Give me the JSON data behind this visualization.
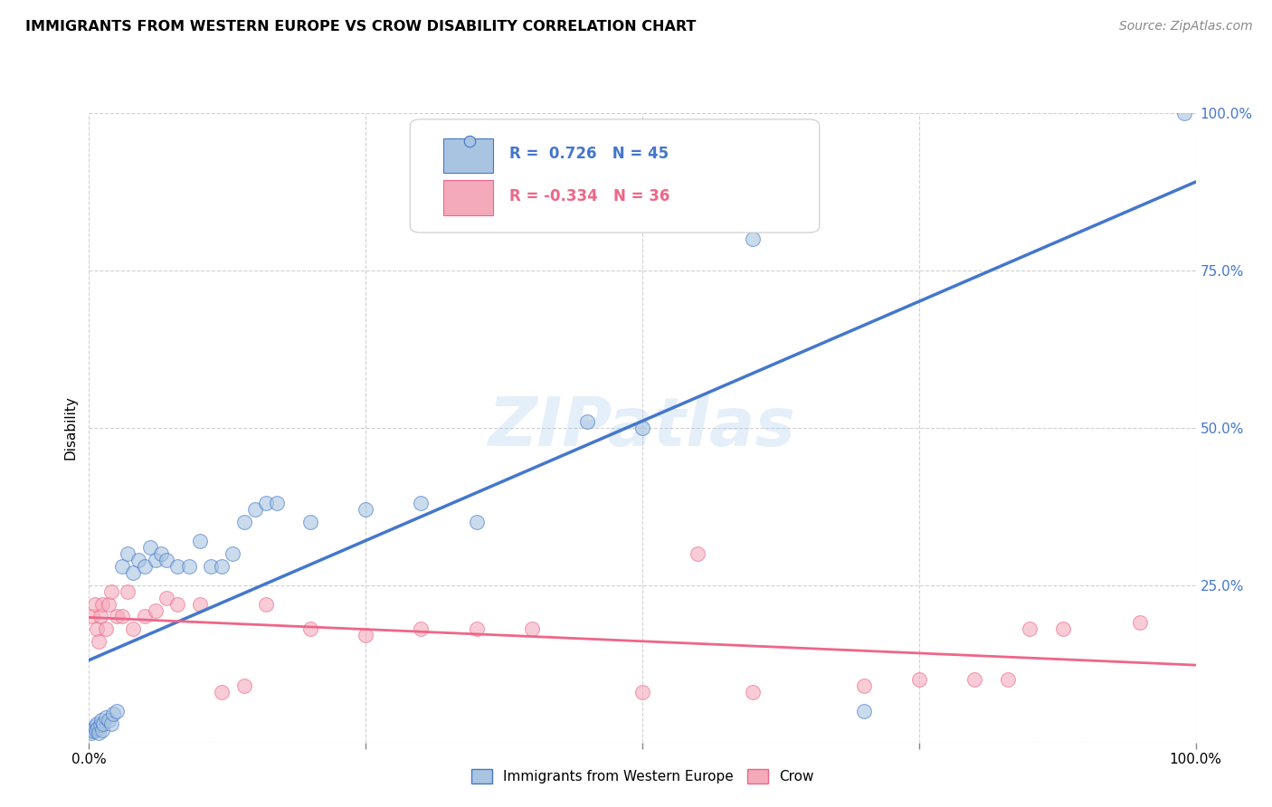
{
  "title": "IMMIGRANTS FROM WESTERN EUROPE VS CROW DISABILITY CORRELATION CHART",
  "source": "Source: ZipAtlas.com",
  "ylabel": "Disability",
  "legend_label1": "Immigrants from Western Europe",
  "legend_label2": "Crow",
  "R1": 0.726,
  "N1": 45,
  "R2": -0.334,
  "N2": 36,
  "blue_color": "#A8C4E0",
  "pink_color": "#F4AABB",
  "line_blue": "#4477CC",
  "line_pink": "#EE6688",
  "watermark": "ZIPatlas",
  "blue_points": [
    [
      0.2,
      1.5
    ],
    [
      0.3,
      2.0
    ],
    [
      0.4,
      1.8
    ],
    [
      0.5,
      2.5
    ],
    [
      0.6,
      2.0
    ],
    [
      0.7,
      3.0
    ],
    [
      0.8,
      2.2
    ],
    [
      0.9,
      1.5
    ],
    [
      1.0,
      2.8
    ],
    [
      1.1,
      3.5
    ],
    [
      1.2,
      2.0
    ],
    [
      1.3,
      3.0
    ],
    [
      1.5,
      4.0
    ],
    [
      1.8,
      3.5
    ],
    [
      2.0,
      3.0
    ],
    [
      2.2,
      4.5
    ],
    [
      2.5,
      5.0
    ],
    [
      3.0,
      28
    ],
    [
      3.5,
      30
    ],
    [
      4.0,
      27
    ],
    [
      4.5,
      29
    ],
    [
      5.0,
      28
    ],
    [
      5.5,
      31
    ],
    [
      6.0,
      29
    ],
    [
      6.5,
      30
    ],
    [
      7.0,
      29
    ],
    [
      8.0,
      28
    ],
    [
      9.0,
      28
    ],
    [
      10.0,
      32
    ],
    [
      11.0,
      28
    ],
    [
      12.0,
      28
    ],
    [
      13.0,
      30
    ],
    [
      14.0,
      35
    ],
    [
      15.0,
      37
    ],
    [
      16.0,
      38
    ],
    [
      17.0,
      38
    ],
    [
      20.0,
      35
    ],
    [
      25.0,
      37
    ],
    [
      30.0,
      38
    ],
    [
      35.0,
      35
    ],
    [
      45.0,
      51
    ],
    [
      50.0,
      50
    ],
    [
      60.0,
      80
    ],
    [
      70.0,
      5
    ],
    [
      99.0,
      100
    ]
  ],
  "pink_points": [
    [
      0.3,
      20
    ],
    [
      0.5,
      22
    ],
    [
      0.7,
      18
    ],
    [
      0.9,
      16
    ],
    [
      1.0,
      20
    ],
    [
      1.2,
      22
    ],
    [
      1.5,
      18
    ],
    [
      1.8,
      22
    ],
    [
      2.0,
      24
    ],
    [
      2.5,
      20
    ],
    [
      3.0,
      20
    ],
    [
      3.5,
      24
    ],
    [
      4.0,
      18
    ],
    [
      5.0,
      20
    ],
    [
      6.0,
      21
    ],
    [
      7.0,
      23
    ],
    [
      8.0,
      22
    ],
    [
      10.0,
      22
    ],
    [
      12.0,
      8
    ],
    [
      14.0,
      9
    ],
    [
      16.0,
      22
    ],
    [
      20.0,
      18
    ],
    [
      25.0,
      17
    ],
    [
      30.0,
      18
    ],
    [
      35.0,
      18
    ],
    [
      40.0,
      18
    ],
    [
      50.0,
      8
    ],
    [
      55.0,
      30
    ],
    [
      60.0,
      8
    ],
    [
      70.0,
      9
    ],
    [
      75.0,
      10
    ],
    [
      80.0,
      10
    ],
    [
      83.0,
      10
    ],
    [
      85.0,
      18
    ],
    [
      88.0,
      18
    ],
    [
      95.0,
      19
    ]
  ]
}
